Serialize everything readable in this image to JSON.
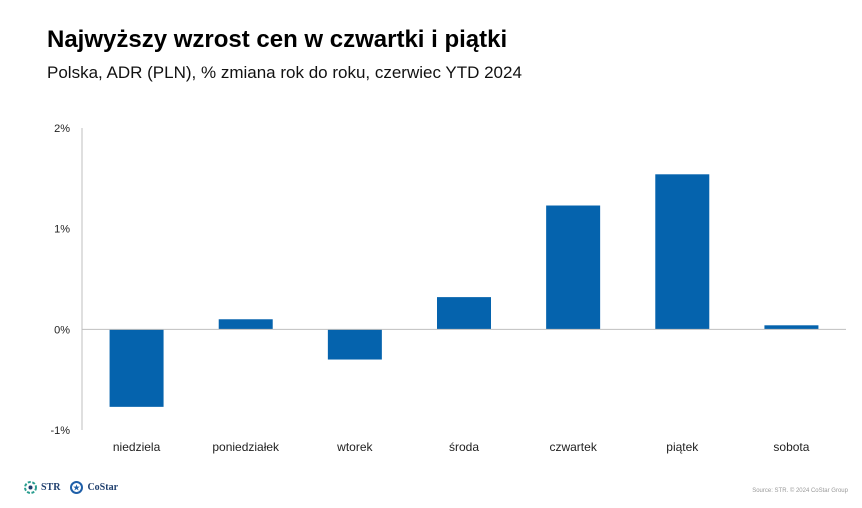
{
  "title": "Najwyższy wzrost cen w czwartki i piątki",
  "subtitle": "Polska, ADR (PLN), % zmiana rok do roku, czerwiec YTD 2024",
  "colors": {
    "bar": "#0563ad",
    "axis": "#bfbfbf"
  },
  "chart_data": {
    "type": "bar",
    "title": "Najwyższy wzrost cen w czwartki i piątki",
    "xlabel": "",
    "ylabel": "",
    "categories": [
      "niedziela",
      "poniedziałek",
      "wtorek",
      "środa",
      "czwartek",
      "piątek",
      "sobota"
    ],
    "values": [
      -0.77,
      0.1,
      -0.3,
      0.32,
      1.23,
      1.54,
      0.04
    ],
    "ylim": [
      -1,
      2
    ],
    "yticks": [
      {
        "value": 2,
        "label": "2%"
      },
      {
        "value": 1,
        "label": "1%"
      },
      {
        "value": 0,
        "label": "0%"
      },
      {
        "value": -1,
        "label": "-1%"
      }
    ],
    "grid": false
  },
  "footer": {
    "logos": [
      {
        "name": "STR",
        "icon": "str-logo-icon"
      },
      {
        "name": "CoStar",
        "icon": "costar-logo-icon"
      }
    ],
    "source": "Source: STR. © 2024 CoStar Group"
  }
}
